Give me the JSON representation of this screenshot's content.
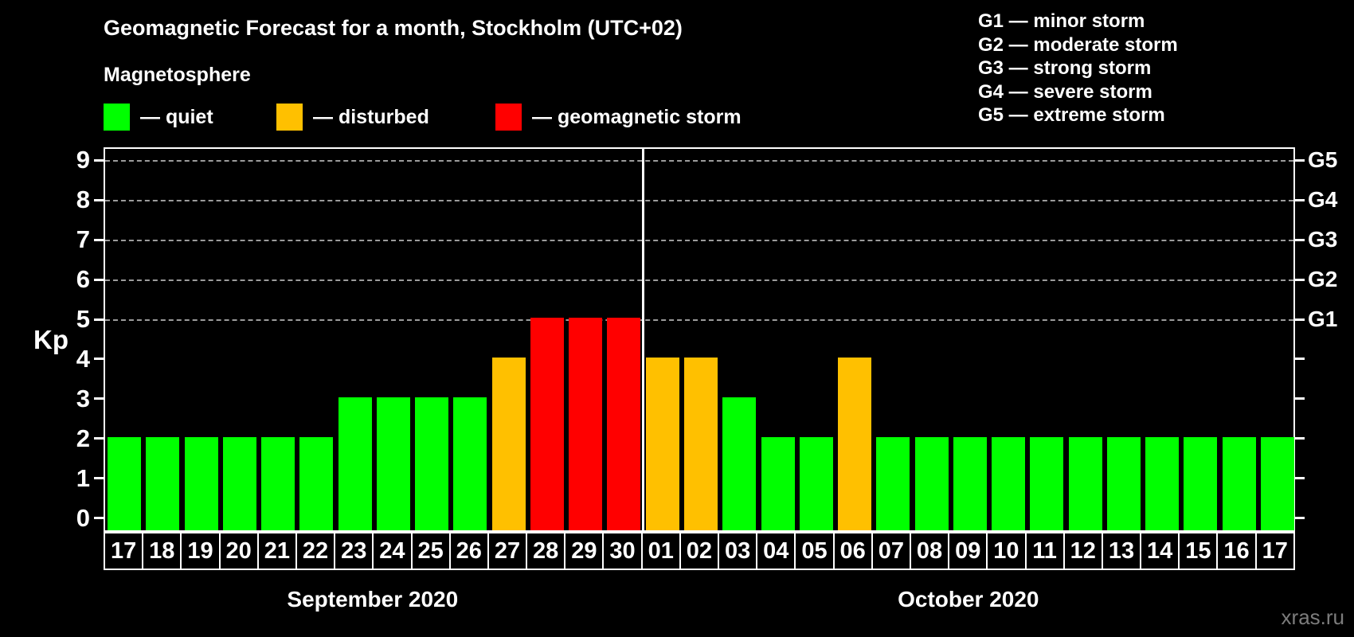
{
  "title": "Geomagnetic Forecast for a month, Stockholm (UTC+02)",
  "subtitle": "Magnetosphere",
  "legend": [
    {
      "status": "quiet",
      "label": "— quiet",
      "color": "#00ff00"
    },
    {
      "status": "disturbed",
      "label": "— disturbed",
      "color": "#ffc000"
    },
    {
      "status": "storm",
      "label": "— geomagnetic storm",
      "color": "#ff0000"
    }
  ],
  "g_scale_legend": [
    "G1 — minor storm",
    "G2 — moderate storm",
    "G3 — strong storm",
    "G4 — severe storm",
    "G5 — extreme storm"
  ],
  "watermark": "xras.ru",
  "chart_data": {
    "type": "bar",
    "ylabel": "Kp",
    "ylim": [
      0,
      9
    ],
    "yticks": [
      0,
      1,
      2,
      3,
      4,
      5,
      6,
      7,
      8,
      9
    ],
    "gridlines_at_kp": [
      5,
      6,
      7,
      8,
      9
    ],
    "grid_style": "dashed",
    "right_axis": [
      {
        "kp": 5,
        "label": "G1"
      },
      {
        "kp": 6,
        "label": "G2"
      },
      {
        "kp": 7,
        "label": "G3"
      },
      {
        "kp": 8,
        "label": "G4"
      },
      {
        "kp": 9,
        "label": "G5"
      }
    ],
    "status_colors": {
      "quiet": "#00ff00",
      "disturbed": "#ffc000",
      "storm": "#ff0000"
    },
    "months": [
      {
        "label": "September 2020",
        "days": [
          {
            "day": "17",
            "kp": 2,
            "status": "quiet"
          },
          {
            "day": "18",
            "kp": 2,
            "status": "quiet"
          },
          {
            "day": "19",
            "kp": 2,
            "status": "quiet"
          },
          {
            "day": "20",
            "kp": 2,
            "status": "quiet"
          },
          {
            "day": "21",
            "kp": 2,
            "status": "quiet"
          },
          {
            "day": "22",
            "kp": 2,
            "status": "quiet"
          },
          {
            "day": "23",
            "kp": 3,
            "status": "quiet"
          },
          {
            "day": "24",
            "kp": 3,
            "status": "quiet"
          },
          {
            "day": "25",
            "kp": 3,
            "status": "quiet"
          },
          {
            "day": "26",
            "kp": 3,
            "status": "quiet"
          },
          {
            "day": "27",
            "kp": 4,
            "status": "disturbed"
          },
          {
            "day": "28",
            "kp": 5,
            "status": "storm"
          },
          {
            "day": "29",
            "kp": 5,
            "status": "storm"
          },
          {
            "day": "30",
            "kp": 5,
            "status": "storm"
          }
        ]
      },
      {
        "label": "October 2020",
        "days": [
          {
            "day": "01",
            "kp": 4,
            "status": "disturbed"
          },
          {
            "day": "02",
            "kp": 4,
            "status": "disturbed"
          },
          {
            "day": "03",
            "kp": 3,
            "status": "quiet"
          },
          {
            "day": "04",
            "kp": 2,
            "status": "quiet"
          },
          {
            "day": "05",
            "kp": 2,
            "status": "quiet"
          },
          {
            "day": "06",
            "kp": 4,
            "status": "disturbed"
          },
          {
            "day": "07",
            "kp": 2,
            "status": "quiet"
          },
          {
            "day": "08",
            "kp": 2,
            "status": "quiet"
          },
          {
            "day": "09",
            "kp": 2,
            "status": "quiet"
          },
          {
            "day": "10",
            "kp": 2,
            "status": "quiet"
          },
          {
            "day": "11",
            "kp": 2,
            "status": "quiet"
          },
          {
            "day": "12",
            "kp": 2,
            "status": "quiet"
          },
          {
            "day": "13",
            "kp": 2,
            "status": "quiet"
          },
          {
            "day": "14",
            "kp": 2,
            "status": "quiet"
          },
          {
            "day": "15",
            "kp": 2,
            "status": "quiet"
          },
          {
            "day": "16",
            "kp": 2,
            "status": "quiet"
          },
          {
            "day": "17",
            "kp": 2,
            "status": "quiet"
          }
        ]
      }
    ]
  }
}
